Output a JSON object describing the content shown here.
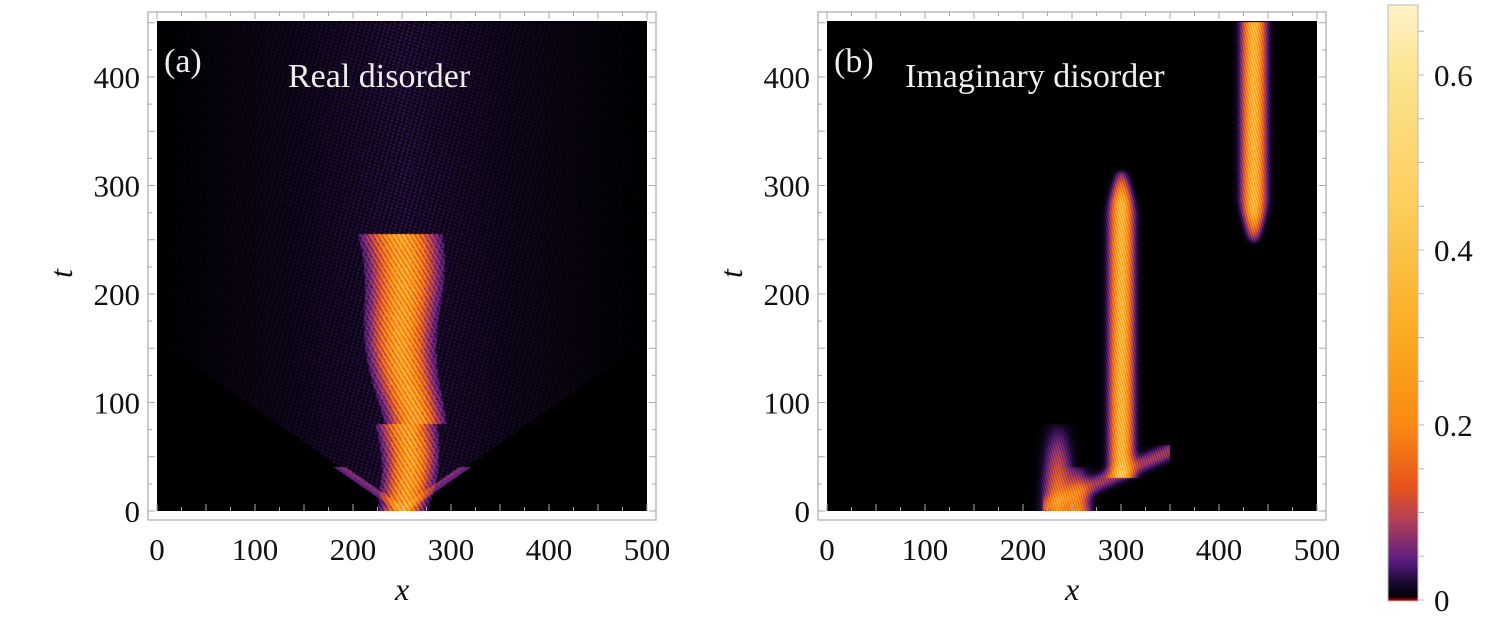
{
  "chart_data": [
    {
      "type": "heatmap",
      "panel_label": "(a)",
      "title": "Real disorder",
      "xlabel": "x",
      "ylabel": "t",
      "xlim": [
        0,
        500
      ],
      "ylim": [
        0,
        450
      ],
      "xticks": [
        "0",
        "100",
        "200",
        "300",
        "400",
        "500"
      ],
      "yticks": [
        "0",
        "100",
        "200",
        "300",
        "400"
      ],
      "xtick_values": [
        0,
        100,
        200,
        300,
        400,
        500
      ],
      "ytick_values": [
        0,
        100,
        200,
        300,
        400
      ],
      "colormap": "inferno"
    },
    {
      "type": "heatmap",
      "panel_label": "(b)",
      "title": "Imaginary disorder",
      "xlabel": "x",
      "ylabel": "t",
      "xlim": [
        0,
        500
      ],
      "ylim": [
        0,
        450
      ],
      "xticks": [
        "0",
        "100",
        "200",
        "300",
        "400",
        "500"
      ],
      "yticks": [
        "0",
        "100",
        "200",
        "300",
        "400"
      ],
      "xtick_values": [
        0,
        100,
        200,
        300,
        400,
        500
      ],
      "ytick_values": [
        0,
        100,
        200,
        300,
        400
      ],
      "colormap": "inferno"
    }
  ],
  "colorbar": {
    "range": [
      0,
      0.68
    ],
    "ticks": [
      "0",
      "0.2",
      "0.4",
      "0.6"
    ],
    "tick_values": [
      0,
      0.2,
      0.4,
      0.6
    ],
    "stops": [
      {
        "v": 0.0,
        "color": "#000000"
      },
      {
        "v": 0.02,
        "color": "#1a0a2e"
      },
      {
        "v": 0.045,
        "color": "#5a1e82"
      },
      {
        "v": 0.09,
        "color": "#b0405a"
      },
      {
        "v": 0.13,
        "color": "#e8541e"
      },
      {
        "v": 0.2,
        "color": "#fa8a14"
      },
      {
        "v": 0.3,
        "color": "#fbab22"
      },
      {
        "v": 0.45,
        "color": "#fcce5c"
      },
      {
        "v": 0.6,
        "color": "#fde490"
      },
      {
        "v": 0.68,
        "color": "#fff2c8"
      }
    ]
  }
}
